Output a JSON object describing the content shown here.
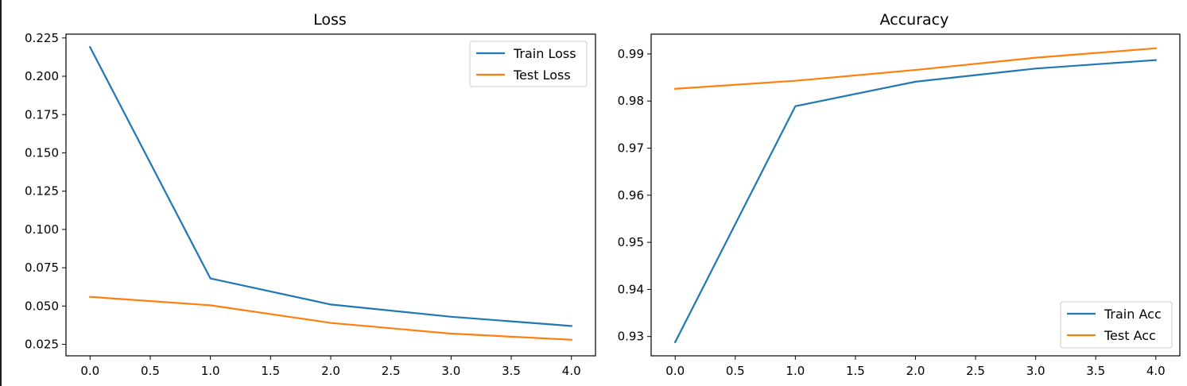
{
  "chart_data": [
    {
      "type": "line",
      "title": "Loss",
      "xlabel": "",
      "ylabel": "",
      "x": [
        0,
        1,
        2,
        3,
        4
      ],
      "xlim": [
        -0.2,
        4.2
      ],
      "ylim": [
        0.0175,
        0.2275
      ],
      "xticks": [
        0.0,
        0.5,
        1.0,
        1.5,
        2.0,
        2.5,
        3.0,
        3.5,
        4.0
      ],
      "xtick_labels": [
        "0.0",
        "0.5",
        "1.0",
        "1.5",
        "2.0",
        "2.5",
        "3.0",
        "3.5",
        "4.0"
      ],
      "yticks": [
        0.025,
        0.05,
        0.075,
        0.1,
        0.125,
        0.15,
        0.175,
        0.2,
        0.225
      ],
      "ytick_labels": [
        "0.025",
        "0.050",
        "0.075",
        "0.100",
        "0.125",
        "0.150",
        "0.175",
        "0.200",
        "0.225"
      ],
      "grid": false,
      "legend_position": "top-right",
      "series": [
        {
          "name": "Train Loss",
          "color": "#1f77b4",
          "values": [
            0.219,
            0.068,
            0.051,
            0.043,
            0.037
          ]
        },
        {
          "name": "Test Loss",
          "color": "#ff7f0e",
          "values": [
            0.056,
            0.0505,
            0.039,
            0.032,
            0.028
          ]
        }
      ]
    },
    {
      "type": "line",
      "title": "Accuracy",
      "xlabel": "",
      "ylabel": "",
      "x": [
        0,
        1,
        2,
        3,
        4
      ],
      "xlim": [
        -0.2,
        4.2
      ],
      "ylim": [
        0.9259,
        0.9942
      ],
      "xticks": [
        0.0,
        0.5,
        1.0,
        1.5,
        2.0,
        2.5,
        3.0,
        3.5,
        4.0
      ],
      "xtick_labels": [
        "0.0",
        "0.5",
        "1.0",
        "1.5",
        "2.0",
        "2.5",
        "3.0",
        "3.5",
        "4.0"
      ],
      "yticks": [
        0.93,
        0.94,
        0.95,
        0.96,
        0.97,
        0.98,
        0.99
      ],
      "ytick_labels": [
        "0.93",
        "0.94",
        "0.95",
        "0.96",
        "0.97",
        "0.98",
        "0.99"
      ],
      "grid": false,
      "legend_position": "bottom-right",
      "series": [
        {
          "name": "Train Acc",
          "color": "#1f77b4",
          "values": [
            0.9288,
            0.9789,
            0.9841,
            0.9869,
            0.9887
          ]
        },
        {
          "name": "Test Acc",
          "color": "#ff7f0e",
          "values": [
            0.9826,
            0.9843,
            0.9866,
            0.9892,
            0.9912
          ]
        }
      ]
    }
  ]
}
